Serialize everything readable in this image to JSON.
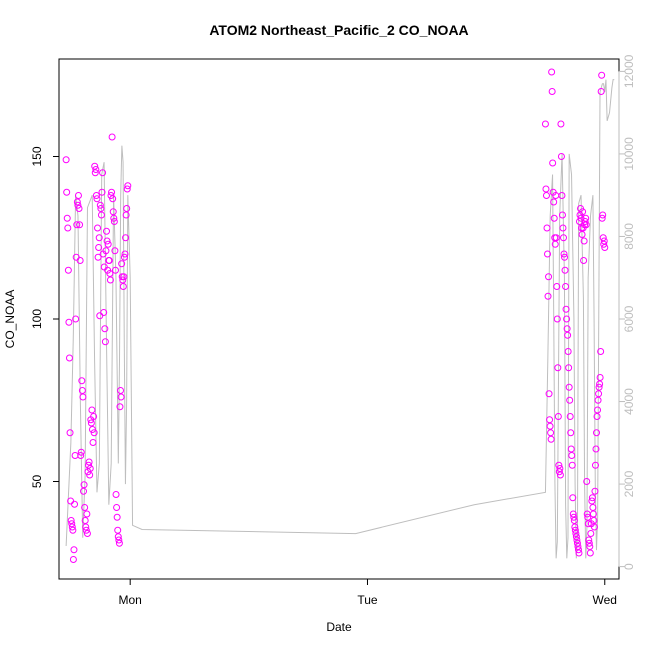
{
  "chart_data": {
    "type": "scatter",
    "title": "ATOM2 Northeast_Pacific_2 CO_NOAA",
    "xlabel": "Date",
    "ylabel": "CO_NOAA",
    "x_ticks": [
      "Mon",
      "Tue",
      "Wed"
    ],
    "xlim": [
      -0.3,
      2.06
    ],
    "ylim": [
      20,
      180
    ],
    "y_ticks": [
      50,
      100,
      150
    ],
    "y2lim": [
      -300,
      12300
    ],
    "y2_ticks": [
      0,
      2000,
      4000,
      6000,
      8000,
      10000,
      12000
    ],
    "grid": false,
    "legend": "none",
    "colors": {
      "points": "#ff00ff",
      "line": "#bebebe",
      "axis": "#000000",
      "y2_axis": "#bebebe"
    },
    "series": [
      {
        "kind": "points",
        "axis": "left",
        "x_start": -0.27,
        "x_end": -0.01,
        "values": [
          149,
          139,
          131,
          128,
          115,
          99,
          88,
          65,
          44,
          38,
          37,
          36,
          35,
          26,
          29,
          43,
          58,
          100,
          119,
          129,
          136,
          135,
          138,
          134,
          129,
          118,
          58,
          59,
          81,
          78,
          76,
          47,
          49,
          42,
          38,
          36,
          35,
          40,
          34,
          53,
          55,
          56,
          52,
          54,
          69,
          68,
          72,
          66,
          62,
          70,
          65,
          147,
          145,
          146,
          138,
          137,
          128,
          119,
          122,
          125,
          101,
          135,
          134,
          132,
          139,
          145,
          120,
          102,
          116,
          97,
          93,
          121,
          127,
          124,
          115,
          123,
          118,
          118,
          114,
          112,
          138,
          139,
          156,
          137,
          133,
          131,
          130,
          121,
          115,
          46,
          42,
          39,
          35,
          33,
          32,
          31,
          73,
          78,
          76,
          117,
          113,
          112,
          110,
          113,
          119,
          120,
          125,
          132,
          134,
          140,
          141
        ]
      },
      {
        "kind": "points",
        "axis": "left",
        "x_start": 1.75,
        "x_end": 2.0,
        "values": [
          160,
          140,
          138,
          128,
          120,
          107,
          113,
          77,
          69,
          67,
          65,
          63,
          176,
          170,
          148,
          139,
          136,
          131,
          125,
          123,
          138,
          125,
          110,
          100,
          85,
          70,
          55,
          53,
          54,
          52,
          160,
          150,
          138,
          132,
          128,
          125,
          120,
          119,
          115,
          110,
          103,
          100,
          97,
          95,
          90,
          85,
          79,
          75,
          70,
          65,
          60,
          58,
          55,
          45,
          40,
          39,
          38,
          36,
          35,
          34,
          33,
          32,
          31,
          30,
          29,
          28,
          130,
          132,
          134,
          131,
          128,
          126,
          133,
          128,
          118,
          124,
          129,
          130,
          131,
          129,
          50,
          40,
          39,
          37,
          32,
          31,
          30,
          28,
          34,
          37,
          44,
          45,
          42,
          40,
          38,
          36,
          47,
          55,
          60,
          65,
          70,
          72,
          75,
          77,
          79,
          80,
          82,
          90,
          170,
          175,
          131,
          132,
          125,
          123,
          124,
          122
        ]
      },
      {
        "kind": "line",
        "axis": "right",
        "points": [
          [
            -0.27,
            500
          ],
          [
            -0.25,
            3000
          ],
          [
            -0.24,
            5500
          ],
          [
            -0.23,
            9000
          ],
          [
            -0.22,
            8500
          ],
          [
            -0.21,
            4000
          ],
          [
            -0.2,
            700
          ],
          [
            -0.19,
            2200
          ],
          [
            -0.18,
            8700
          ],
          [
            -0.16,
            9000
          ],
          [
            -0.15,
            5000
          ],
          [
            -0.14,
            1800
          ],
          [
            -0.13,
            2500
          ],
          [
            -0.12,
            9500
          ],
          [
            -0.11,
            9800
          ],
          [
            -0.1,
            5500
          ],
          [
            -0.09,
            1500
          ],
          [
            -0.08,
            2500
          ],
          [
            -0.07,
            9000
          ],
          [
            -0.06,
            7000
          ],
          [
            -0.05,
            2500
          ],
          [
            -0.045,
            5000
          ],
          [
            -0.04,
            9000
          ],
          [
            -0.035,
            10200
          ],
          [
            -0.03,
            9800
          ],
          [
            -0.025,
            5500
          ],
          [
            -0.02,
            2000
          ],
          [
            -0.015,
            4000
          ],
          [
            -0.01,
            9000
          ],
          [
            0,
            7000
          ],
          [
            0.01,
            1000
          ],
          [
            0.05,
            900
          ],
          [
            0.95,
            800
          ],
          [
            1.45,
            1500
          ],
          [
            1.75,
            1800
          ],
          [
            1.76,
            5000
          ],
          [
            1.77,
            8500
          ],
          [
            1.78,
            9500
          ],
          [
            1.785,
            6000
          ],
          [
            1.79,
            2000
          ],
          [
            1.795,
            200
          ],
          [
            1.8,
            600
          ],
          [
            1.81,
            8500
          ],
          [
            1.82,
            10000
          ],
          [
            1.83,
            7000
          ],
          [
            1.835,
            1500
          ],
          [
            1.84,
            200
          ],
          [
            1.845,
            700
          ],
          [
            1.85,
            10000
          ],
          [
            1.86,
            9500
          ],
          [
            1.87,
            6000
          ],
          [
            1.875,
            2000
          ],
          [
            1.88,
            200
          ],
          [
            1.885,
            800
          ],
          [
            1.89,
            8800
          ],
          [
            1.9,
            9000
          ],
          [
            1.91,
            6500
          ],
          [
            1.915,
            2000
          ],
          [
            1.92,
            200
          ],
          [
            1.925,
            1000
          ],
          [
            1.93,
            7000
          ],
          [
            1.94,
            8500
          ],
          [
            1.95,
            9000
          ],
          [
            1.955,
            6000
          ],
          [
            1.96,
            2000
          ],
          [
            1.965,
            400
          ],
          [
            1.97,
            1200
          ],
          [
            1.98,
            11500
          ],
          [
            1.99,
            11700
          ],
          [
            1.995,
            11700
          ],
          [
            2.0,
            11500
          ],
          [
            2.005,
            11800
          ],
          [
            2.01,
            10800
          ],
          [
            2.02,
            11000
          ],
          [
            2.03,
            11600
          ],
          [
            2.035,
            11800
          ],
          [
            2.04,
            11800
          ]
        ]
      }
    ]
  }
}
